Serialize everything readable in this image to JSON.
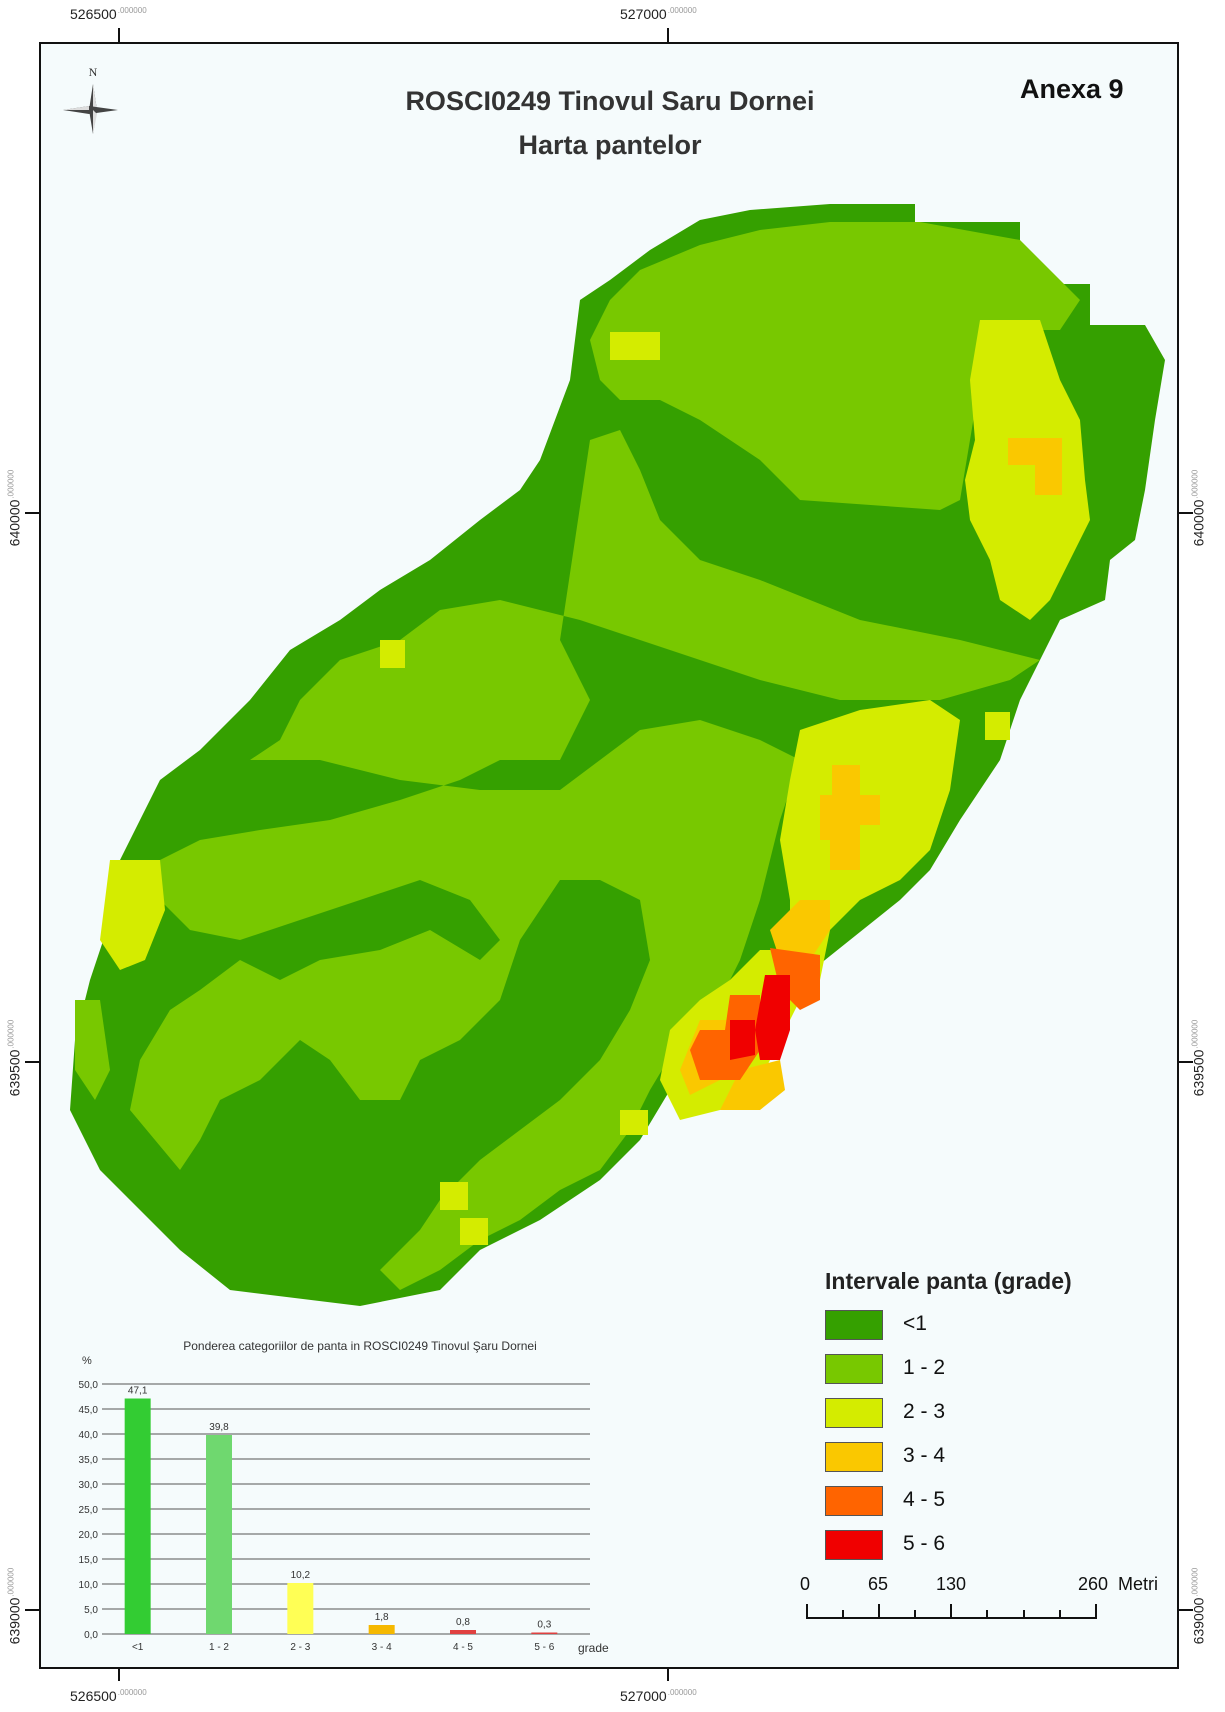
{
  "map": {
    "title_line1": "ROSCI0249 Tinovul Saru Dornei",
    "title_line2": "Harta pantelor",
    "annex_label": "Anexa 9",
    "north_label": "N",
    "coords": {
      "x_left": "526500",
      "x_right": "527000",
      "x_suffix": ".000000",
      "y_top": "640000",
      "y_mid": "639500",
      "y_bottom": "639000",
      "y_suffix": ".000000"
    }
  },
  "legend": {
    "title": "Intervale panta (grade)",
    "items": [
      {
        "label": "<1",
        "color": "#35a000"
      },
      {
        "label": "1 - 2",
        "color": "#78c800"
      },
      {
        "label": "2 - 3",
        "color": "#d4ec00"
      },
      {
        "label": "3 - 4",
        "color": "#fac800"
      },
      {
        "label": "4 - 5",
        "color": "#ff6400"
      },
      {
        "label": "5 - 6",
        "color": "#f00000"
      }
    ]
  },
  "scale_bar": {
    "labels": [
      "0",
      "65",
      "130",
      "260"
    ],
    "unit": "Metri"
  },
  "chart_data": {
    "type": "bar",
    "title": "Ponderea categoriilor de panta in ROSCI0249 Tinovul Şaru Dornei",
    "ylabel": "%",
    "xlabel": "grade",
    "categories": [
      "<1",
      "1 - 2",
      "2 - 3",
      "3 - 4",
      "4 - 5",
      "5 - 6"
    ],
    "values": [
      47.1,
      39.8,
      10.2,
      1.8,
      0.8,
      0.3
    ],
    "value_labels": [
      "47,1",
      "39,8",
      "10,2",
      "1,8",
      "0,8",
      "0,3"
    ],
    "colors": [
      "#33cc33",
      "#6fd86f",
      "#ffff55",
      "#f5b800",
      "#e04040",
      "#e04040"
    ],
    "yticks": [
      "0,0",
      "5,0",
      "10,0",
      "15,0",
      "20,0",
      "25,0",
      "30,0",
      "35,0",
      "40,0",
      "45,0",
      "50,0"
    ],
    "ylim": [
      0,
      50
    ],
    "grid": true
  }
}
